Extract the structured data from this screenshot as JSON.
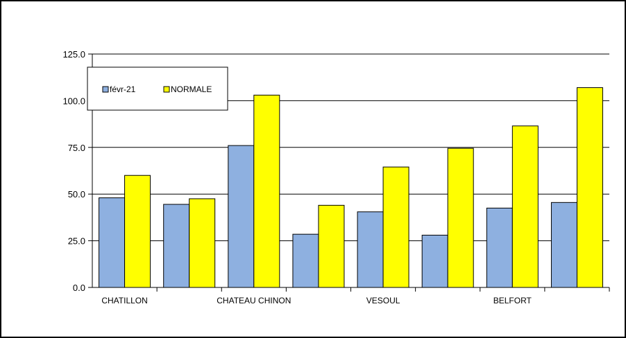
{
  "chart_data": {
    "type": "bar",
    "title": "",
    "xlabel": "",
    "ylabel": "",
    "ylim": [
      0,
      125
    ],
    "y_ticks": [
      "0.0",
      "25.0",
      "50.0",
      "75.0",
      "100.0",
      "125.0"
    ],
    "y_tick_values": [
      0,
      25,
      50,
      75,
      100,
      125
    ],
    "grid": true,
    "legend_position": "top-left",
    "categories": [
      "CHATILLON",
      "",
      "CHATEAU CHINON",
      "",
      "VESOUL",
      "",
      "BELFORT",
      ""
    ],
    "series": [
      {
        "name": "févr-21",
        "color": "#8EB0E0",
        "values": [
          48,
          44.5,
          76,
          28.5,
          40.5,
          28,
          42.5,
          45.5
        ]
      },
      {
        "name": "NORMALE",
        "color": "#FFFF00",
        "values": [
          60,
          47.5,
          103,
          44,
          64.5,
          74.5,
          86.5,
          107
        ]
      }
    ]
  }
}
